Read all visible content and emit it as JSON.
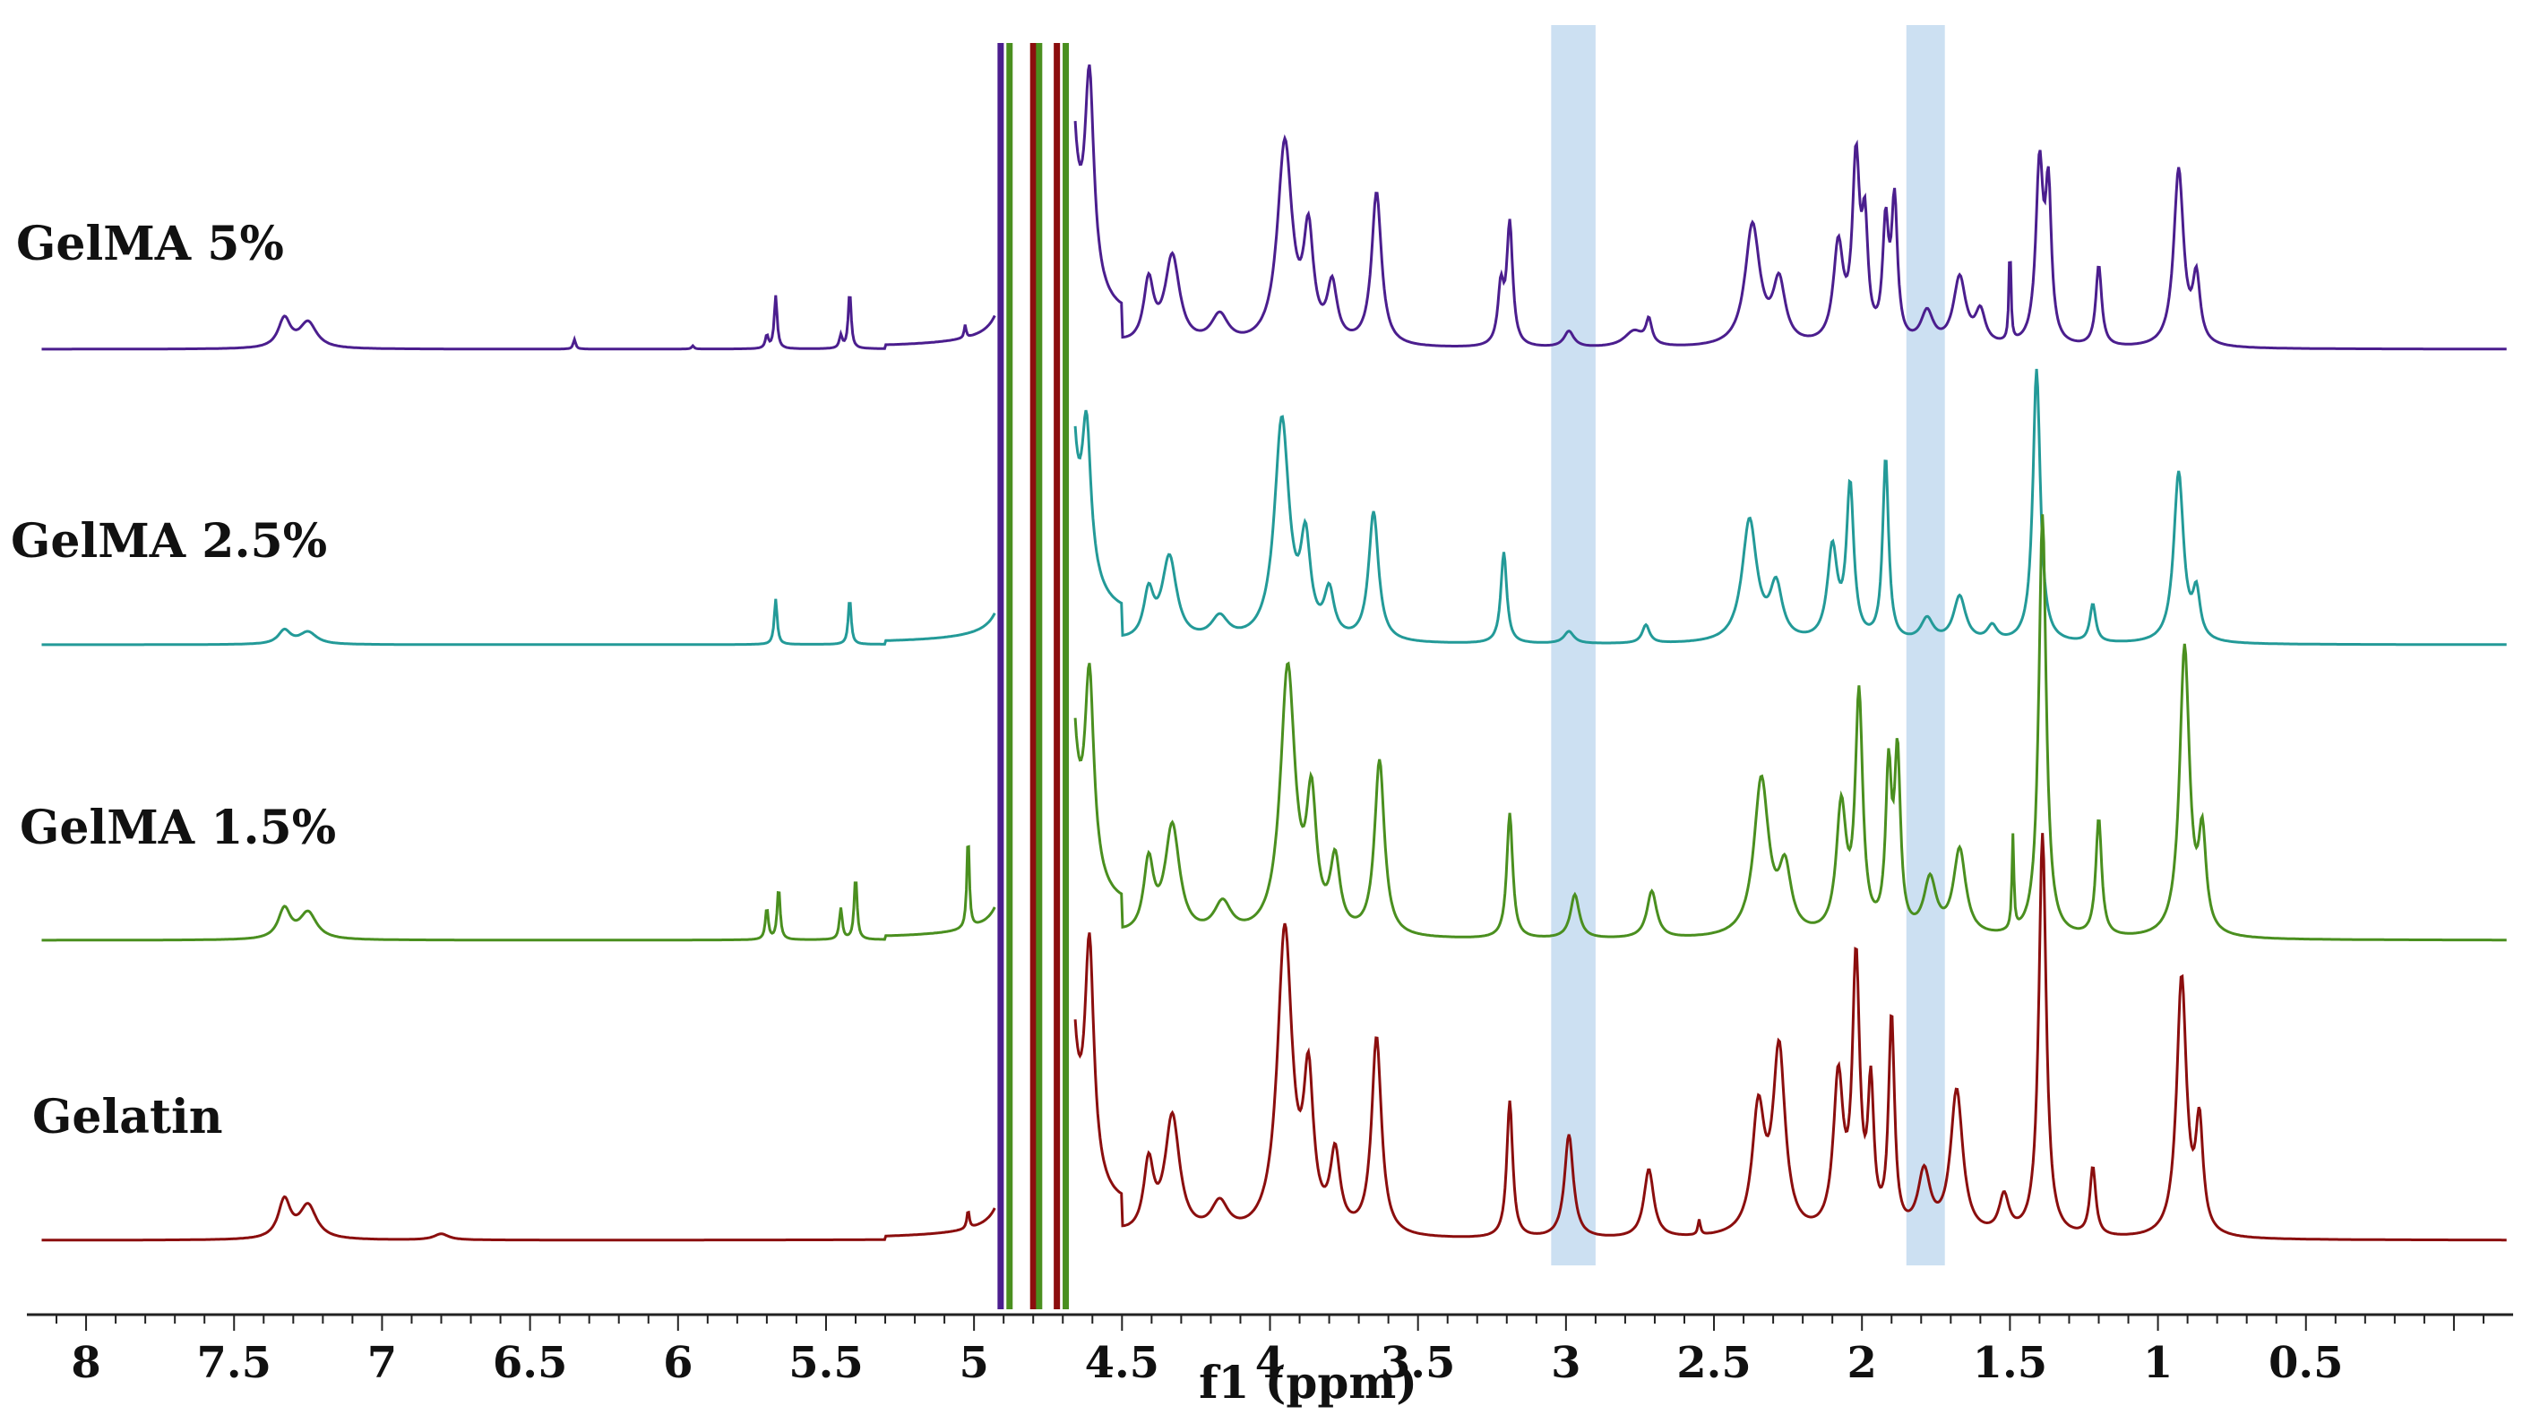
{
  "chart_data": {
    "type": "line",
    "title": "",
    "xlabel": "f1 (ppm)",
    "ylabel": "",
    "xlim": [
      8.2,
      -0.2
    ],
    "x_reversed": true,
    "ticks": [
      "8",
      "7.5",
      "7",
      "6.5",
      "6",
      "5.5",
      "5",
      "4.5",
      "4",
      "3.5",
      "3",
      "2.5",
      "2",
      "1.5",
      "1",
      "0.5"
    ],
    "tick_values": [
      8,
      7.5,
      7,
      6.5,
      6,
      5.5,
      5,
      4.5,
      4,
      3.5,
      3,
      2.5,
      2,
      1.5,
      1,
      0.5
    ],
    "highlight_bands": [
      {
        "from": 3.05,
        "to": 2.9,
        "color": "#b7d3ec"
      },
      {
        "from": 1.85,
        "to": 1.72,
        "color": "#b7d3ec"
      }
    ],
    "series": [
      {
        "name": "GelMA 5%",
        "color": "#4b1e8e",
        "baseline": 0,
        "peaks": [
          {
            "x": 7.33,
            "h": 0.18,
            "w": 0.025
          },
          {
            "x": 7.25,
            "h": 0.16,
            "w": 0.035
          },
          {
            "x": 6.35,
            "h": 0.06,
            "w": 0.005
          },
          {
            "x": 5.95,
            "h": 0.02,
            "w": 0.005
          },
          {
            "x": 5.7,
            "h": 0.08,
            "w": 0.006
          },
          {
            "x": 5.67,
            "h": 0.33,
            "w": 0.006
          },
          {
            "x": 5.45,
            "h": 0.08,
            "w": 0.006
          },
          {
            "x": 5.42,
            "h": 0.35,
            "w": 0.006
          },
          {
            "x": 5.03,
            "h": 0.08,
            "w": 0.004
          },
          {
            "x": 4.61,
            "h": 1.25,
            "w": 0.018
          },
          {
            "x": 4.41,
            "h": 0.38,
            "w": 0.02
          },
          {
            "x": 4.33,
            "h": 0.55,
            "w": 0.03
          },
          {
            "x": 4.17,
            "h": 0.18,
            "w": 0.035
          },
          {
            "x": 3.95,
            "h": 1.25,
            "w": 0.03
          },
          {
            "x": 3.87,
            "h": 0.65,
            "w": 0.02
          },
          {
            "x": 3.79,
            "h": 0.35,
            "w": 0.02
          },
          {
            "x": 3.64,
            "h": 0.95,
            "w": 0.02
          },
          {
            "x": 3.22,
            "h": 0.35,
            "w": 0.012
          },
          {
            "x": 3.19,
            "h": 0.75,
            "w": 0.012
          },
          {
            "x": 2.99,
            "h": 0.1,
            "w": 0.02
          },
          {
            "x": 2.77,
            "h": 0.1,
            "w": 0.04
          },
          {
            "x": 2.72,
            "h": 0.15,
            "w": 0.012
          },
          {
            "x": 2.37,
            "h": 0.75,
            "w": 0.03
          },
          {
            "x": 2.28,
            "h": 0.38,
            "w": 0.025
          },
          {
            "x": 2.08,
            "h": 0.6,
            "w": 0.02
          },
          {
            "x": 2.02,
            "h": 1.1,
            "w": 0.015
          },
          {
            "x": 1.99,
            "h": 0.65,
            "w": 0.012
          },
          {
            "x": 1.92,
            "h": 0.7,
            "w": 0.012
          },
          {
            "x": 1.89,
            "h": 0.85,
            "w": 0.012
          },
          {
            "x": 1.78,
            "h": 0.2,
            "w": 0.025
          },
          {
            "x": 1.67,
            "h": 0.42,
            "w": 0.025
          },
          {
            "x": 1.6,
            "h": 0.2,
            "w": 0.02
          },
          {
            "x": 1.5,
            "h": 0.6,
            "w": 0.004
          },
          {
            "x": 1.4,
            "h": 1.1,
            "w": 0.015
          },
          {
            "x": 1.37,
            "h": 0.9,
            "w": 0.012
          },
          {
            "x": 1.2,
            "h": 0.5,
            "w": 0.012
          },
          {
            "x": 0.93,
            "h": 1.1,
            "w": 0.02
          },
          {
            "x": 0.87,
            "h": 0.4,
            "w": 0.015
          }
        ]
      },
      {
        "name": "GelMA 2.5%",
        "color": "#239a98",
        "baseline": 0,
        "peaks": [
          {
            "x": 7.33,
            "h": 0.09,
            "w": 0.025
          },
          {
            "x": 7.25,
            "h": 0.08,
            "w": 0.035
          },
          {
            "x": 5.67,
            "h": 0.3,
            "w": 0.006
          },
          {
            "x": 5.42,
            "h": 0.3,
            "w": 0.006
          },
          {
            "x": 4.62,
            "h": 0.95,
            "w": 0.018
          },
          {
            "x": 4.41,
            "h": 0.3,
            "w": 0.02
          },
          {
            "x": 4.34,
            "h": 0.55,
            "w": 0.03
          },
          {
            "x": 4.17,
            "h": 0.15,
            "w": 0.035
          },
          {
            "x": 3.96,
            "h": 1.45,
            "w": 0.03
          },
          {
            "x": 3.88,
            "h": 0.6,
            "w": 0.02
          },
          {
            "x": 3.8,
            "h": 0.3,
            "w": 0.02
          },
          {
            "x": 3.65,
            "h": 0.85,
            "w": 0.02
          },
          {
            "x": 3.21,
            "h": 0.6,
            "w": 0.012
          },
          {
            "x": 2.99,
            "h": 0.08,
            "w": 0.02
          },
          {
            "x": 2.73,
            "h": 0.12,
            "w": 0.015
          },
          {
            "x": 2.38,
            "h": 0.8,
            "w": 0.03
          },
          {
            "x": 2.29,
            "h": 0.35,
            "w": 0.025
          },
          {
            "x": 2.1,
            "h": 0.6,
            "w": 0.02
          },
          {
            "x": 2.04,
            "h": 1.0,
            "w": 0.015
          },
          {
            "x": 1.92,
            "h": 1.2,
            "w": 0.012
          },
          {
            "x": 1.78,
            "h": 0.15,
            "w": 0.025
          },
          {
            "x": 1.67,
            "h": 0.3,
            "w": 0.025
          },
          {
            "x": 1.56,
            "h": 0.1,
            "w": 0.02
          },
          {
            "x": 1.41,
            "h": 1.8,
            "w": 0.015
          },
          {
            "x": 1.22,
            "h": 0.25,
            "w": 0.012
          },
          {
            "x": 0.93,
            "h": 1.12,
            "w": 0.02
          },
          {
            "x": 0.87,
            "h": 0.3,
            "w": 0.015
          }
        ]
      },
      {
        "name": "GelMA 1.5%",
        "color": "#4a8f1f",
        "baseline": 0,
        "peaks": [
          {
            "x": 7.33,
            "h": 0.19,
            "w": 0.025
          },
          {
            "x": 7.25,
            "h": 0.17,
            "w": 0.035
          },
          {
            "x": 5.7,
            "h": 0.2,
            "w": 0.006
          },
          {
            "x": 5.66,
            "h": 0.33,
            "w": 0.006
          },
          {
            "x": 5.45,
            "h": 0.2,
            "w": 0.006
          },
          {
            "x": 5.4,
            "h": 0.4,
            "w": 0.006
          },
          {
            "x": 5.02,
            "h": 0.6,
            "w": 0.005
          },
          {
            "x": 4.61,
            "h": 1.25,
            "w": 0.018
          },
          {
            "x": 4.41,
            "h": 0.45,
            "w": 0.02
          },
          {
            "x": 4.33,
            "h": 0.7,
            "w": 0.03
          },
          {
            "x": 4.16,
            "h": 0.2,
            "w": 0.035
          },
          {
            "x": 3.94,
            "h": 1.7,
            "w": 0.03
          },
          {
            "x": 3.86,
            "h": 0.8,
            "w": 0.02
          },
          {
            "x": 3.78,
            "h": 0.45,
            "w": 0.02
          },
          {
            "x": 3.63,
            "h": 1.12,
            "w": 0.02
          },
          {
            "x": 3.19,
            "h": 0.8,
            "w": 0.012
          },
          {
            "x": 2.97,
            "h": 0.28,
            "w": 0.018
          },
          {
            "x": 2.71,
            "h": 0.3,
            "w": 0.02
          },
          {
            "x": 2.34,
            "h": 1.0,
            "w": 0.03
          },
          {
            "x": 2.26,
            "h": 0.4,
            "w": 0.025
          },
          {
            "x": 2.07,
            "h": 0.8,
            "w": 0.02
          },
          {
            "x": 2.01,
            "h": 1.5,
            "w": 0.015
          },
          {
            "x": 1.91,
            "h": 1.0,
            "w": 0.012
          },
          {
            "x": 1.88,
            "h": 1.1,
            "w": 0.012
          },
          {
            "x": 1.77,
            "h": 0.35,
            "w": 0.025
          },
          {
            "x": 1.67,
            "h": 0.55,
            "w": 0.025
          },
          {
            "x": 1.49,
            "h": 0.6,
            "w": 0.004
          },
          {
            "x": 1.39,
            "h": 2.7,
            "w": 0.015
          },
          {
            "x": 1.2,
            "h": 0.75,
            "w": 0.012
          },
          {
            "x": 0.91,
            "h": 1.85,
            "w": 0.02
          },
          {
            "x": 0.85,
            "h": 0.6,
            "w": 0.015
          }
        ]
      },
      {
        "name": "Gelatin",
        "color": "#8b0e0e",
        "baseline": 0,
        "peaks": [
          {
            "x": 7.33,
            "h": 0.25,
            "w": 0.025
          },
          {
            "x": 7.25,
            "h": 0.22,
            "w": 0.035
          },
          {
            "x": 6.8,
            "h": 0.04,
            "w": 0.03
          },
          {
            "x": 5.02,
            "h": 0.12,
            "w": 0.005
          },
          {
            "x": 4.61,
            "h": 1.5,
            "w": 0.018
          },
          {
            "x": 4.41,
            "h": 0.45,
            "w": 0.02
          },
          {
            "x": 4.33,
            "h": 0.78,
            "w": 0.03
          },
          {
            "x": 4.17,
            "h": 0.2,
            "w": 0.035
          },
          {
            "x": 3.95,
            "h": 2.0,
            "w": 0.03
          },
          {
            "x": 3.87,
            "h": 0.95,
            "w": 0.02
          },
          {
            "x": 3.78,
            "h": 0.5,
            "w": 0.02
          },
          {
            "x": 3.64,
            "h": 1.3,
            "w": 0.02
          },
          {
            "x": 3.19,
            "h": 0.9,
            "w": 0.012
          },
          {
            "x": 2.99,
            "h": 0.68,
            "w": 0.018
          },
          {
            "x": 2.72,
            "h": 0.45,
            "w": 0.02
          },
          {
            "x": 2.55,
            "h": 0.1,
            "w": 0.005
          },
          {
            "x": 2.35,
            "h": 0.8,
            "w": 0.025
          },
          {
            "x": 2.28,
            "h": 1.2,
            "w": 0.025
          },
          {
            "x": 2.08,
            "h": 1.0,
            "w": 0.02
          },
          {
            "x": 2.02,
            "h": 1.75,
            "w": 0.015
          },
          {
            "x": 1.97,
            "h": 0.9,
            "w": 0.012
          },
          {
            "x": 1.9,
            "h": 1.4,
            "w": 0.012
          },
          {
            "x": 1.79,
            "h": 0.4,
            "w": 0.025
          },
          {
            "x": 1.68,
            "h": 0.95,
            "w": 0.025
          },
          {
            "x": 1.52,
            "h": 0.25,
            "w": 0.02
          },
          {
            "x": 1.39,
            "h": 2.65,
            "w": 0.015
          },
          {
            "x": 1.22,
            "h": 0.45,
            "w": 0.012
          },
          {
            "x": 0.92,
            "h": 1.7,
            "w": 0.02
          },
          {
            "x": 0.86,
            "h": 0.7,
            "w": 0.015
          }
        ]
      }
    ],
    "solvent_region": {
      "label": "",
      "x_values": [
        4.91,
        4.88,
        4.8,
        4.78,
        4.72,
        4.69
      ]
    }
  }
}
